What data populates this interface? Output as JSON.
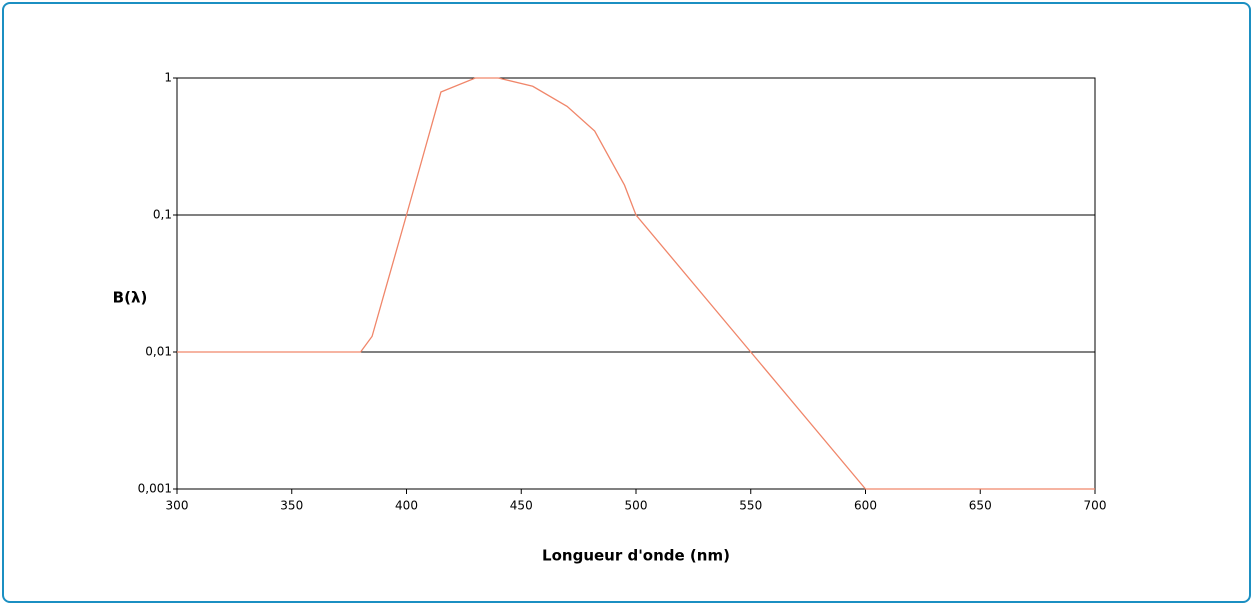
{
  "chart_data": {
    "type": "line",
    "x_label": "Longueur d'onde (nm)",
    "y_label": "B(λ)",
    "x": [
      300,
      380,
      385,
      400,
      415,
      430,
      440,
      455,
      470,
      482,
      495,
      500,
      550,
      600,
      700
    ],
    "series": [
      {
        "color": "#f0866a",
        "values": [
          0.01,
          0.01,
          0.013,
          0.1,
          0.79,
          1.0,
          1.0,
          0.87,
          0.62,
          0.41,
          0.165,
          0.1,
          0.01,
          0.001,
          0.001
        ]
      }
    ],
    "xlim": [
      300,
      700
    ],
    "xticks": [
      300,
      350,
      400,
      450,
      500,
      550,
      600,
      650,
      700
    ],
    "ylim": [
      0.001,
      1
    ],
    "y_log": true,
    "yticks": [
      {
        "value": 0.001,
        "label": "0,001"
      },
      {
        "value": 0.01,
        "label": "0,01"
      },
      {
        "value": 0.1,
        "label": "0,1"
      },
      1
    ],
    "grid": true
  }
}
